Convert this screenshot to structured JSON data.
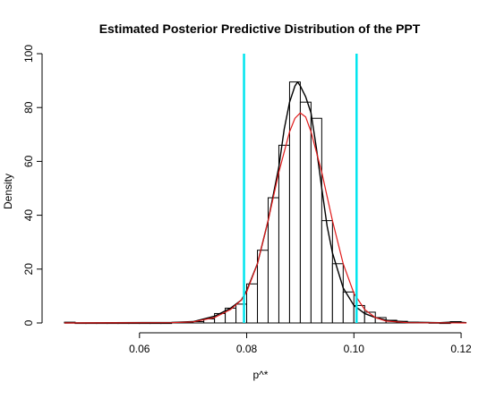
{
  "chart_data": {
    "type": "bar",
    "title": "Estimated Posterior Predictive Distribution of the PPT",
    "xlabel": "p^*",
    "ylabel": "Density",
    "xlim": [
      0.044,
      0.123
    ],
    "ylim": [
      0,
      100
    ],
    "xticks": [
      0.06,
      0.08,
      0.1,
      0.12
    ],
    "xtick_labels": [
      "0.06",
      "0.08",
      "0.10",
      "0.12"
    ],
    "yticks": [
      0,
      20,
      40,
      60,
      80,
      100
    ],
    "ytick_labels": [
      "0",
      "20",
      "40",
      "60",
      "80",
      "100"
    ],
    "grid": false,
    "histogram": {
      "bin_width": 0.002,
      "bin_starts": [
        0.046,
        0.048,
        0.05,
        0.052,
        0.054,
        0.056,
        0.058,
        0.06,
        0.062,
        0.064,
        0.066,
        0.068,
        0.07,
        0.072,
        0.074,
        0.076,
        0.078,
        0.08,
        0.082,
        0.084,
        0.086,
        0.088,
        0.09,
        0.092,
        0.094,
        0.096,
        0.098,
        0.1,
        0.102,
        0.104,
        0.106,
        0.108,
        0.11,
        0.112,
        0.114,
        0.116,
        0.118
      ],
      "densities": [
        0.3,
        0,
        0,
        0,
        0,
        0,
        0,
        0,
        0,
        0,
        0.2,
        0.3,
        0.5,
        1.5,
        3.5,
        5.5,
        7,
        14.5,
        27,
        46.5,
        66,
        89.5,
        82,
        76,
        38,
        22,
        11.5,
        6.5,
        4,
        2,
        1,
        0.6,
        0.3,
        0.2,
        0.1,
        0,
        0.5
      ]
    },
    "series": [
      {
        "color": "#000000",
        "x": [
          0.046,
          0.066,
          0.07,
          0.074,
          0.077,
          0.079,
          0.08,
          0.082,
          0.084,
          0.086,
          0.087,
          0.088,
          0.089,
          0.0895,
          0.09,
          0.091,
          0.092,
          0.093,
          0.094,
          0.095,
          0.096,
          0.098,
          0.1,
          0.102,
          0.104,
          0.106,
          0.11,
          0.116,
          0.119,
          0.121
        ],
        "y": [
          0,
          0.2,
          0.5,
          2.5,
          5.5,
          8.5,
          12,
          22,
          38,
          58,
          72,
          82,
          88,
          89.5,
          88,
          84,
          78,
          65,
          50,
          36,
          26,
          13,
          6.5,
          3.5,
          2,
          1,
          0.3,
          0.1,
          0.4,
          0.1
        ]
      },
      {
        "color": "#e01a1a",
        "x": [
          0.046,
          0.066,
          0.07,
          0.074,
          0.077,
          0.079,
          0.08,
          0.082,
          0.084,
          0.086,
          0.088,
          0.089,
          0.09,
          0.091,
          0.092,
          0.094,
          0.096,
          0.098,
          0.1,
          0.102,
          0.104,
          0.106,
          0.11,
          0.121
        ],
        "y": [
          0,
          0.1,
          0.4,
          2,
          5,
          8.5,
          11.5,
          22,
          38,
          56,
          71,
          76,
          78,
          76.5,
          71,
          56,
          38,
          22,
          11,
          5,
          2,
          0.7,
          0.1,
          0
        ]
      }
    ],
    "vlines": [
      {
        "x": 0.0795,
        "color": "#00e5ee"
      },
      {
        "x": 0.1005,
        "color": "#00e5ee"
      }
    ]
  }
}
